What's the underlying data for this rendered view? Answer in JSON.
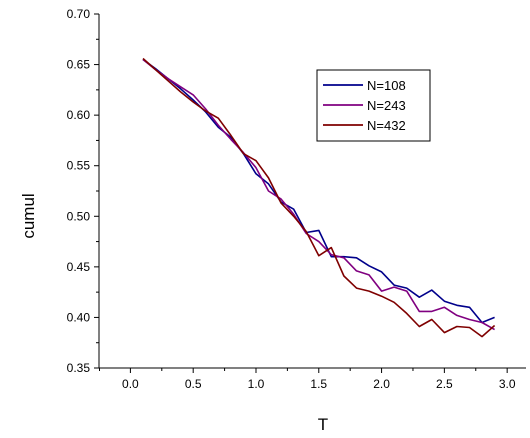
{
  "chart_data": {
    "type": "line",
    "title": "",
    "xlabel": "T",
    "ylabel": "cumul",
    "xlim": [
      -0.25,
      3.15
    ],
    "ylim": [
      0.35,
      0.7
    ],
    "xticks": [
      "0.0",
      "0.5",
      "1.0",
      "1.5",
      "2.0",
      "2.5",
      "3.0"
    ],
    "xtick_values": [
      0.0,
      0.5,
      1.0,
      1.5,
      2.0,
      2.5,
      3.0
    ],
    "yticks": [
      "0.35",
      "0.40",
      "0.45",
      "0.50",
      "0.55",
      "0.60",
      "0.65",
      "0.70"
    ],
    "ytick_values": [
      0.35,
      0.4,
      0.45,
      0.5,
      0.55,
      0.6,
      0.65,
      0.7
    ],
    "grid": false,
    "legend_position": "top-right",
    "x": [
      0.1,
      0.2,
      0.3,
      0.4,
      0.5,
      0.6,
      0.7,
      0.8,
      0.9,
      1.0,
      1.1,
      1.2,
      1.3,
      1.4,
      1.5,
      1.6,
      1.7,
      1.8,
      1.9,
      2.0,
      2.1,
      2.2,
      2.3,
      2.4,
      2.5,
      2.6,
      2.7,
      2.8,
      2.9
    ],
    "series": [
      {
        "name": "N=108",
        "color": "#00008b",
        "values": [
          0.655,
          0.646,
          0.636,
          0.626,
          0.615,
          0.603,
          0.588,
          0.578,
          0.562,
          0.542,
          0.532,
          0.514,
          0.507,
          0.484,
          0.486,
          0.46,
          0.46,
          0.459,
          0.451,
          0.445,
          0.432,
          0.429,
          0.42,
          0.427,
          0.416,
          0.412,
          0.41,
          0.395,
          0.4
        ]
      },
      {
        "name": "N=243",
        "color": "#800080",
        "values": [
          0.655,
          0.645,
          0.636,
          0.628,
          0.62,
          0.606,
          0.59,
          0.576,
          0.563,
          0.548,
          0.525,
          0.517,
          0.502,
          0.483,
          0.475,
          0.462,
          0.459,
          0.446,
          0.442,
          0.426,
          0.43,
          0.426,
          0.406,
          0.406,
          0.41,
          0.402,
          0.398,
          0.395,
          0.388
        ]
      },
      {
        "name": "N=432",
        "color": "#7f0000",
        "values": [
          0.656,
          0.645,
          0.634,
          0.623,
          0.613,
          0.604,
          0.597,
          0.58,
          0.562,
          0.555,
          0.538,
          0.513,
          0.5,
          0.485,
          0.461,
          0.469,
          0.441,
          0.429,
          0.426,
          0.421,
          0.415,
          0.404,
          0.391,
          0.398,
          0.385,
          0.391,
          0.39,
          0.381,
          0.392
        ]
      }
    ]
  }
}
